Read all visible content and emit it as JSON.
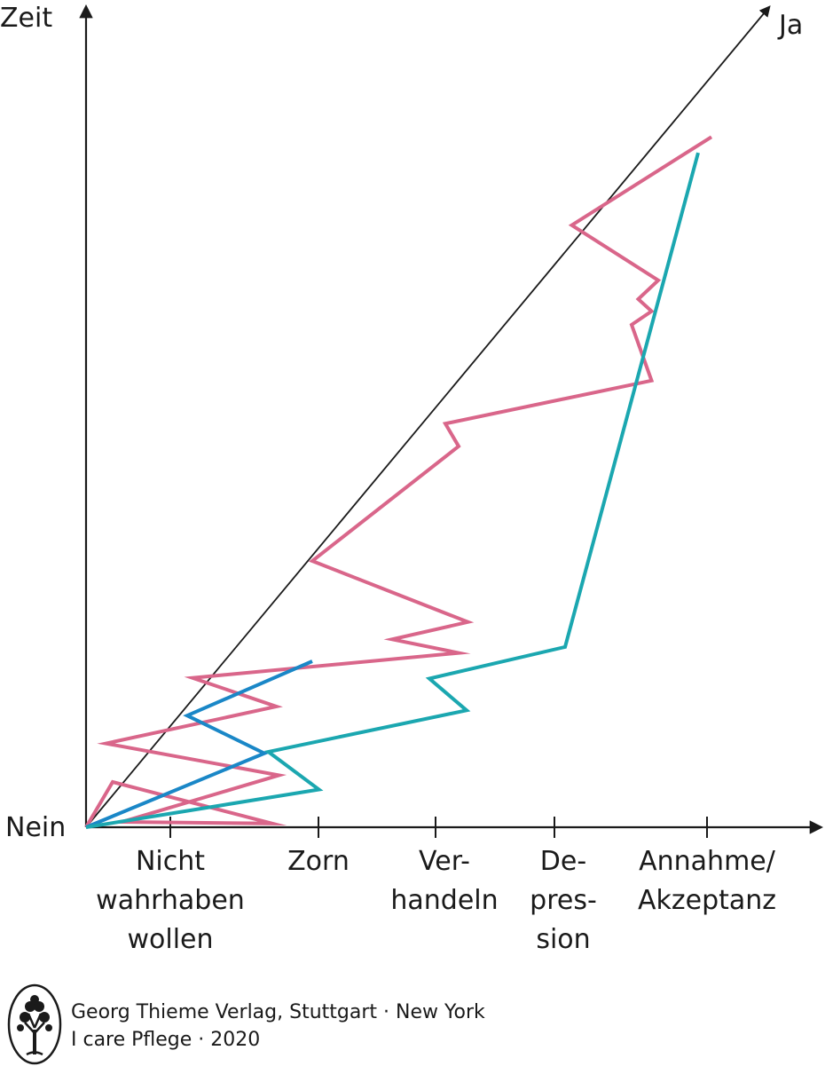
{
  "chart_data": {
    "type": "line",
    "y_axis_label": "Zeit",
    "x_axis": {
      "start_label": "Nein",
      "categories": [
        {
          "lines": [
            "Nicht",
            "wahrhaben",
            "wollen"
          ]
        },
        {
          "lines": [
            "Zorn"
          ]
        },
        {
          "lines": [
            "Ver-",
            "handeln"
          ]
        },
        {
          "lines": [
            "De-",
            "pres-",
            "sion"
          ]
        },
        {
          "lines": [
            "Annahme/",
            "Akzeptanz"
          ]
        }
      ]
    },
    "diagonal": {
      "end_label": "Ja"
    },
    "x_range": [
      0,
      5.4
    ],
    "y_range": [
      0,
      10
    ],
    "series": [
      {
        "color": "#d9668a",
        "points": [
          [
            0,
            0
          ],
          [
            0.2,
            0.6
          ],
          [
            1.4,
            0.05
          ],
          [
            0.27,
            0.07
          ],
          [
            1.45,
            0.69
          ],
          [
            0.15,
            1.11
          ],
          [
            1.43,
            1.6
          ],
          [
            0.8,
            1.98
          ],
          [
            2.8,
            2.31
          ],
          [
            2.3,
            2.49
          ],
          [
            2.87,
            2.72
          ],
          [
            1.7,
            3.53
          ],
          [
            2.8,
            5.05
          ],
          [
            2.7,
            5.35
          ],
          [
            4.25,
            5.92
          ],
          [
            4.1,
            6.66
          ],
          [
            4.25,
            6.84
          ],
          [
            4.15,
            7.0
          ],
          [
            4.3,
            7.25
          ],
          [
            3.65,
            7.98
          ],
          [
            4.7,
            9.15
          ]
        ]
      },
      {
        "color": "#1a87c7",
        "points": [
          [
            0,
            0
          ],
          [
            1.34,
            0.98
          ],
          [
            0.76,
            1.48
          ],
          [
            1.7,
            2.2
          ]
        ]
      },
      {
        "color": "#1ba7b0",
        "points": [
          [
            0,
            0
          ],
          [
            1.75,
            0.5
          ],
          [
            1.37,
            1.0
          ],
          [
            2.86,
            1.55
          ],
          [
            2.58,
            1.97
          ],
          [
            3.6,
            2.39
          ],
          [
            4.6,
            8.94
          ]
        ]
      }
    ]
  },
  "footer": {
    "publisher": "Georg Thieme Verlag, Stuttgart · New York",
    "source": "I care Pflege · 2020",
    "logo_icon": "tree-seal-icon"
  }
}
